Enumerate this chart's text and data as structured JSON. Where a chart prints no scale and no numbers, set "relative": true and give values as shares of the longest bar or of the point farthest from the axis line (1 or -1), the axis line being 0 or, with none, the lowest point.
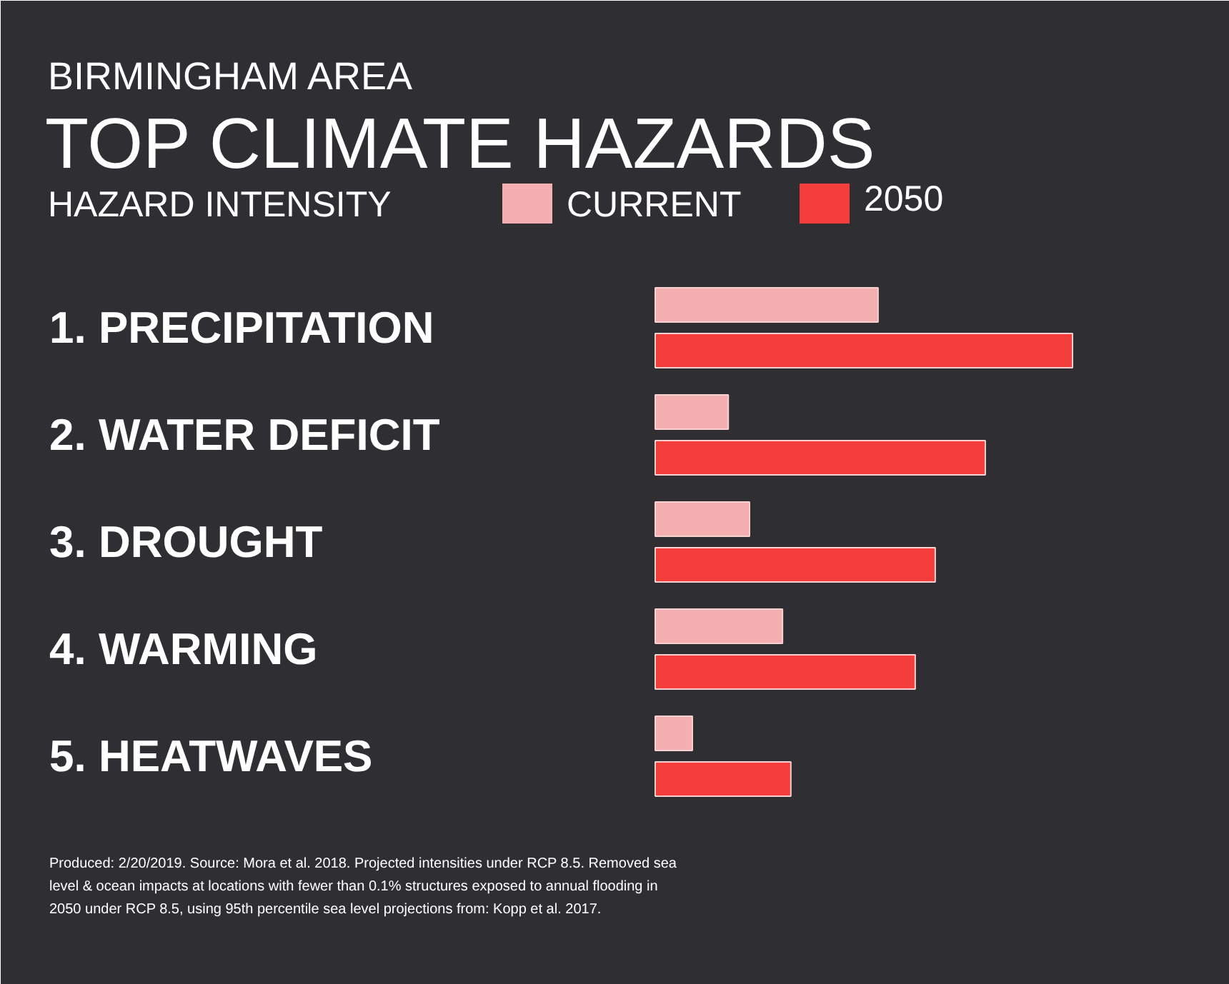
{
  "chart_data": {
    "type": "bar",
    "orientation": "horizontal",
    "relative": true,
    "subtitle": "BIRMINGHAM AREA",
    "title": "TOP CLIMATE HAZARDS",
    "legend_title": "HAZARD INTENSITY",
    "legend": "top",
    "categories": [
      "1. PRECIPITATION",
      "2. WATER DEFICIT",
      "3. DROUGHT",
      "4. WARMING",
      "5. HEATWAVES"
    ],
    "series": [
      {
        "name": "CURRENT",
        "color": "#f4b0b0",
        "values": [
          0.534,
          0.175,
          0.226,
          0.305,
          0.089
        ]
      },
      {
        "name": "2050",
        "color": "#f33e3b",
        "values": [
          1,
          0.791,
          0.671,
          0.623,
          0.325
        ]
      }
    ],
    "annotations": [
      "Produced: 2/20/2019. Source: Mora et al. 2018. Projected intensities under RCP 8.5. Removed sea level & ocean impacts at locations with fewer than 0.1% structures exposed to annual flooding in 2050 under RCP 8.5, using 95th percentile sea level projections from: Kopp et al. 2017."
    ]
  }
}
